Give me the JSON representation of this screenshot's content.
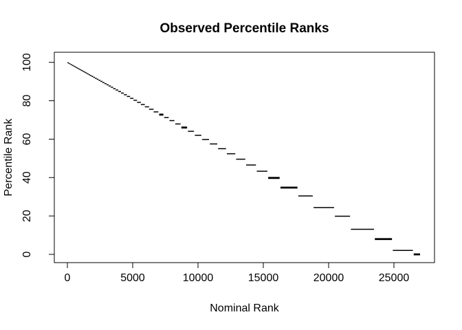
{
  "chart": {
    "title": "Observed Percentile Ranks",
    "xlabel": "Nominal Rank",
    "ylabel": "Percentile Rank"
  },
  "chart_data": {
    "type": "line",
    "subtype": "step-staircase",
    "title": "Observed Percentile Ranks",
    "xlabel": "Nominal Rank",
    "ylabel": "Percentile Rank",
    "x_ticks": [
      0,
      5000,
      10000,
      15000,
      20000,
      25000
    ],
    "y_ticks": [
      0,
      20,
      40,
      60,
      80,
      100
    ],
    "xlim": [
      -1080,
      28080
    ],
    "ylim": [
      -4.2,
      104.2
    ],
    "grid": false,
    "legend": false,
    "n_points": 27000,
    "series": [
      {
        "name": "observed percentile rank",
        "segment_format": [
          "nominal_rank_start",
          "nominal_rank_end",
          "percentile_rank",
          "bold"
        ],
        "segments": [
          [
            0,
            25,
            99.91,
            0
          ],
          [
            25,
            50,
            99.81,
            0
          ],
          [
            50,
            80,
            99.7,
            0
          ],
          [
            80,
            110,
            99.59,
            0
          ],
          [
            110,
            145,
            99.46,
            0
          ],
          [
            145,
            180,
            99.33,
            0
          ],
          [
            180,
            220,
            99.19,
            0
          ],
          [
            220,
            260,
            99.04,
            0
          ],
          [
            260,
            305,
            98.87,
            0
          ],
          [
            305,
            350,
            98.7,
            0
          ],
          [
            350,
            400,
            98.52,
            0
          ],
          [
            400,
            450,
            98.33,
            0
          ],
          [
            450,
            505,
            98.13,
            0
          ],
          [
            505,
            560,
            97.93,
            0
          ],
          [
            560,
            620,
            97.7,
            0
          ],
          [
            620,
            680,
            97.48,
            0
          ],
          [
            680,
            745,
            97.24,
            0
          ],
          [
            745,
            810,
            97.0,
            0
          ],
          [
            810,
            880,
            96.74,
            0
          ],
          [
            880,
            955,
            96.46,
            0
          ],
          [
            955,
            1035,
            96.17,
            0
          ],
          [
            1035,
            1120,
            95.85,
            0
          ],
          [
            1120,
            1210,
            95.52,
            0
          ],
          [
            1210,
            1305,
            95.17,
            0
          ],
          [
            1305,
            1405,
            94.8,
            0
          ],
          [
            1405,
            1510,
            94.41,
            0
          ],
          [
            1510,
            1620,
            94.0,
            0
          ],
          [
            1620,
            1735,
            93.57,
            0
          ],
          [
            1735,
            1855,
            93.13,
            0
          ],
          [
            1855,
            1980,
            92.67,
            0
          ],
          [
            1980,
            2110,
            92.19,
            0
          ],
          [
            2110,
            2245,
            91.69,
            0
          ],
          [
            2245,
            2385,
            91.17,
            0
          ],
          [
            2385,
            2530,
            90.63,
            0
          ],
          [
            2530,
            2680,
            90.07,
            0
          ],
          [
            2680,
            2835,
            89.5,
            0
          ],
          [
            2835,
            2995,
            88.91,
            0
          ],
          [
            2995,
            3160,
            88.3,
            0
          ],
          [
            3160,
            3330,
            87.67,
            0
          ],
          [
            3330,
            3505,
            87.02,
            0
          ],
          [
            3505,
            3695,
            86.31,
            0
          ],
          [
            3695,
            3895,
            85.57,
            0
          ],
          [
            3895,
            4105,
            84.8,
            0
          ],
          [
            4105,
            4325,
            83.98,
            0
          ],
          [
            4325,
            4555,
            83.13,
            0
          ],
          [
            4555,
            4800,
            82.22,
            0
          ],
          [
            4800,
            5060,
            81.26,
            0
          ],
          [
            5060,
            5335,
            80.24,
            0
          ],
          [
            5335,
            5625,
            79.17,
            0
          ],
          [
            5625,
            5930,
            78.04,
            0
          ],
          [
            5930,
            6255,
            76.83,
            0
          ],
          [
            6255,
            6600,
            75.56,
            0
          ],
          [
            6600,
            6965,
            74.2,
            0
          ],
          [
            6965,
            7350,
            72.78,
            1
          ],
          [
            7350,
            7755,
            71.28,
            0
          ],
          [
            7755,
            8195,
            69.65,
            0
          ],
          [
            8195,
            8665,
            67.91,
            0
          ],
          [
            8665,
            9165,
            66.06,
            1
          ],
          [
            9165,
            9695,
            64.09,
            0
          ],
          [
            9695,
            10255,
            62.02,
            0
          ],
          [
            10255,
            10845,
            59.83,
            0
          ],
          [
            10845,
            11475,
            57.5,
            0
          ],
          [
            11475,
            12145,
            55.02,
            0
          ],
          [
            12145,
            12855,
            52.39,
            0
          ],
          [
            12855,
            13620,
            49.56,
            0
          ],
          [
            13620,
            14435,
            46.54,
            0
          ],
          [
            14435,
            15310,
            43.3,
            0
          ],
          [
            15310,
            16250,
            39.81,
            1
          ],
          [
            16250,
            17615,
            34.76,
            1
          ],
          [
            17615,
            18785,
            30.43,
            0
          ],
          [
            18785,
            20415,
            24.39,
            0
          ],
          [
            20415,
            21640,
            19.85,
            0
          ],
          [
            21640,
            23475,
            13.06,
            0
          ],
          [
            23475,
            24850,
            7.96,
            1
          ],
          [
            24850,
            26450,
            2.04,
            0
          ],
          [
            26450,
            27000,
            0.0,
            1
          ]
        ]
      }
    ]
  }
}
